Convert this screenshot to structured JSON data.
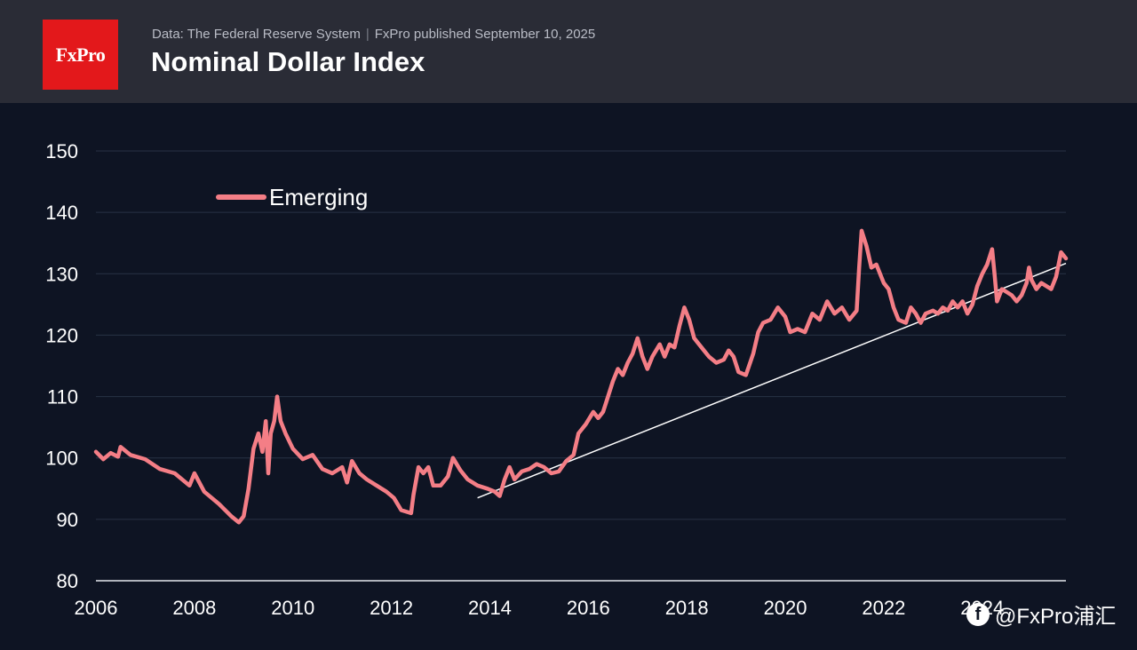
{
  "header": {
    "logo_text": "FxPro",
    "source_text": "Data: The Federal Reserve System",
    "published_text": "FxPro published September 10, 2025",
    "title": "Nominal Dollar Index"
  },
  "watermark": {
    "icon_glyph": "f",
    "text": "@FxPro浦汇"
  },
  "colors": {
    "background": "#0e1423",
    "header": "#2a2c36",
    "logo": "#e3181b",
    "series": "#f47e86",
    "trendline": "#ffffff",
    "grid": "#283244"
  },
  "chart_data": {
    "type": "line",
    "title": "Nominal Dollar Index",
    "xlabel": "",
    "ylabel": "",
    "xlim": [
      2006,
      2025.7
    ],
    "ylim": [
      80,
      150
    ],
    "x_ticks": [
      "2006",
      "2008",
      "2010",
      "2012",
      "2014",
      "2016",
      "2018",
      "2020",
      "2022",
      "2024"
    ],
    "y_ticks": [
      "80",
      "90",
      "100",
      "110",
      "120",
      "130",
      "140",
      "150"
    ],
    "grid": true,
    "legend_position": "top-left",
    "series": [
      {
        "name": "Emerging",
        "color": "#f47e86",
        "points": [
          [
            2006.0,
            101
          ],
          [
            2006.15,
            99.8
          ],
          [
            2006.3,
            100.8
          ],
          [
            2006.45,
            100.2
          ],
          [
            2006.5,
            101.8
          ],
          [
            2006.7,
            100.5
          ],
          [
            2007.0,
            99.8
          ],
          [
            2007.3,
            98.2
          ],
          [
            2007.6,
            97.5
          ],
          [
            2007.9,
            95.5
          ],
          [
            2008.0,
            97.5
          ],
          [
            2008.2,
            94.5
          ],
          [
            2008.5,
            92.5
          ],
          [
            2008.75,
            90.5
          ],
          [
            2008.9,
            89.5
          ],
          [
            2009.0,
            90.5
          ],
          [
            2009.1,
            95
          ],
          [
            2009.2,
            101.5
          ],
          [
            2009.3,
            104
          ],
          [
            2009.38,
            101
          ],
          [
            2009.45,
            106
          ],
          [
            2009.5,
            97.5
          ],
          [
            2009.55,
            104
          ],
          [
            2009.62,
            106
          ],
          [
            2009.68,
            110
          ],
          [
            2009.75,
            106
          ],
          [
            2009.85,
            104
          ],
          [
            2010.0,
            101.5
          ],
          [
            2010.2,
            99.8
          ],
          [
            2010.4,
            100.5
          ],
          [
            2010.6,
            98.2
          ],
          [
            2010.8,
            97.5
          ],
          [
            2011.0,
            98.5
          ],
          [
            2011.1,
            96
          ],
          [
            2011.2,
            99.5
          ],
          [
            2011.35,
            97.5
          ],
          [
            2011.5,
            96.5
          ],
          [
            2011.7,
            95.5
          ],
          [
            2011.9,
            94.5
          ],
          [
            2012.05,
            93.5
          ],
          [
            2012.2,
            91.5
          ],
          [
            2012.4,
            91
          ],
          [
            2012.45,
            94
          ],
          [
            2012.55,
            98.5
          ],
          [
            2012.65,
            97.5
          ],
          [
            2012.75,
            98.5
          ],
          [
            2012.85,
            95.5
          ],
          [
            2013.0,
            95.5
          ],
          [
            2013.15,
            97
          ],
          [
            2013.25,
            100
          ],
          [
            2013.4,
            98
          ],
          [
            2013.55,
            96.5
          ],
          [
            2013.75,
            95.5
          ],
          [
            2013.95,
            95
          ],
          [
            2014.1,
            94.5
          ],
          [
            2014.2,
            93.8
          ],
          [
            2014.3,
            96.5
          ],
          [
            2014.4,
            98.5
          ],
          [
            2014.5,
            96.5
          ],
          [
            2014.65,
            97.8
          ],
          [
            2014.8,
            98.2
          ],
          [
            2014.95,
            99
          ],
          [
            2015.1,
            98.5
          ],
          [
            2015.25,
            97.5
          ],
          [
            2015.4,
            97.8
          ],
          [
            2015.55,
            99.5
          ],
          [
            2015.7,
            100.5
          ],
          [
            2015.8,
            104
          ],
          [
            2015.95,
            105.5
          ],
          [
            2016.1,
            107.5
          ],
          [
            2016.2,
            106.5
          ],
          [
            2016.3,
            107.5
          ],
          [
            2016.4,
            110
          ],
          [
            2016.5,
            112.5
          ],
          [
            2016.6,
            114.5
          ],
          [
            2016.7,
            113.5
          ],
          [
            2016.8,
            115.5
          ],
          [
            2016.9,
            117
          ],
          [
            2017.0,
            119.5
          ],
          [
            2017.1,
            116.5
          ],
          [
            2017.2,
            114.5
          ],
          [
            2017.3,
            116.5
          ],
          [
            2017.45,
            118.5
          ],
          [
            2017.55,
            116.5
          ],
          [
            2017.65,
            118.5
          ],
          [
            2017.75,
            118
          ],
          [
            2017.85,
            121.5
          ],
          [
            2017.95,
            124.5
          ],
          [
            2018.05,
            122.5
          ],
          [
            2018.15,
            119.5
          ],
          [
            2018.3,
            118
          ],
          [
            2018.45,
            116.5
          ],
          [
            2018.6,
            115.5
          ],
          [
            2018.75,
            116
          ],
          [
            2018.85,
            117.5
          ],
          [
            2018.95,
            116.5
          ],
          [
            2019.05,
            114
          ],
          [
            2019.2,
            113.5
          ],
          [
            2019.35,
            117
          ],
          [
            2019.45,
            120.5
          ],
          [
            2019.55,
            122
          ],
          [
            2019.7,
            122.5
          ],
          [
            2019.85,
            124.5
          ],
          [
            2020.0,
            123
          ],
          [
            2020.1,
            120.5
          ],
          [
            2020.25,
            121
          ],
          [
            2020.4,
            120.5
          ],
          [
            2020.55,
            123.5
          ],
          [
            2020.7,
            122.5
          ],
          [
            2020.85,
            125.5
          ],
          [
            2021.0,
            123.5
          ],
          [
            2021.15,
            124.5
          ],
          [
            2021.3,
            122.5
          ],
          [
            2021.45,
            124
          ],
          [
            2021.5,
            131
          ],
          [
            2021.55,
            137
          ],
          [
            2021.65,
            134.5
          ],
          [
            2021.75,
            131
          ],
          [
            2021.85,
            131.5
          ],
          [
            2022.0,
            128.5
          ],
          [
            2022.1,
            127.5
          ],
          [
            2022.2,
            124.5
          ],
          [
            2022.3,
            122.5
          ],
          [
            2022.45,
            122
          ],
          [
            2022.55,
            124.5
          ],
          [
            2022.65,
            123.5
          ],
          [
            2022.75,
            122
          ],
          [
            2022.85,
            123.5
          ],
          [
            2023.0,
            124
          ],
          [
            2023.1,
            123.5
          ],
          [
            2023.2,
            124.5
          ],
          [
            2023.3,
            124
          ],
          [
            2023.4,
            125.5
          ],
          [
            2023.5,
            124.5
          ],
          [
            2023.6,
            125.5
          ],
          [
            2023.7,
            123.5
          ],
          [
            2023.8,
            125
          ],
          [
            2023.9,
            128
          ],
          [
            2024.0,
            130
          ],
          [
            2024.1,
            131.5
          ],
          [
            2024.2,
            134
          ],
          [
            2024.25,
            130
          ],
          [
            2024.3,
            125.5
          ],
          [
            2024.4,
            127.5
          ],
          [
            2024.5,
            127
          ],
          [
            2024.6,
            126.5
          ],
          [
            2024.7,
            125.5
          ],
          [
            2024.8,
            126.5
          ],
          [
            2024.9,
            128.5
          ],
          [
            2024.95,
            131
          ],
          [
            2025.0,
            129
          ],
          [
            2025.1,
            127.5
          ],
          [
            2025.2,
            128.5
          ],
          [
            2025.3,
            128
          ],
          [
            2025.4,
            127.5
          ],
          [
            2025.5,
            129.5
          ],
          [
            2025.6,
            133.5
          ],
          [
            2025.7,
            132.5
          ]
        ]
      }
    ],
    "trendline": {
      "from": [
        2013.75,
        93.5
      ],
      "to": [
        2025.7,
        131.7
      ]
    }
  }
}
